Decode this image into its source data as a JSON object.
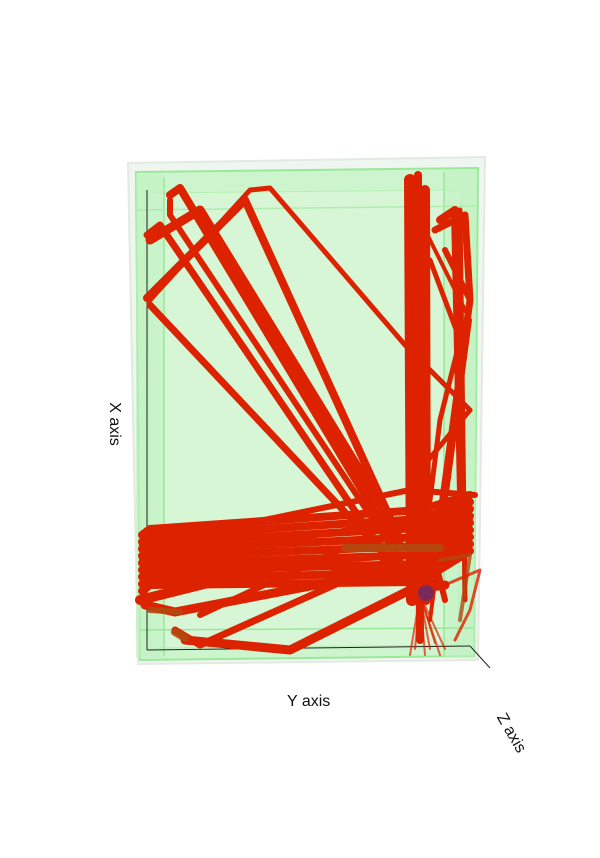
{
  "axes": {
    "x_label": "X axis",
    "y_label": "Y axis",
    "z_label": "Z axis"
  },
  "colors": {
    "path": "#dd2200",
    "path_dark": "#b24a10",
    "container_fill": "#cdf5cd",
    "container_edge": "#9ae89a",
    "frame_edge": "#222222",
    "marker": "#7a2a5a"
  }
}
